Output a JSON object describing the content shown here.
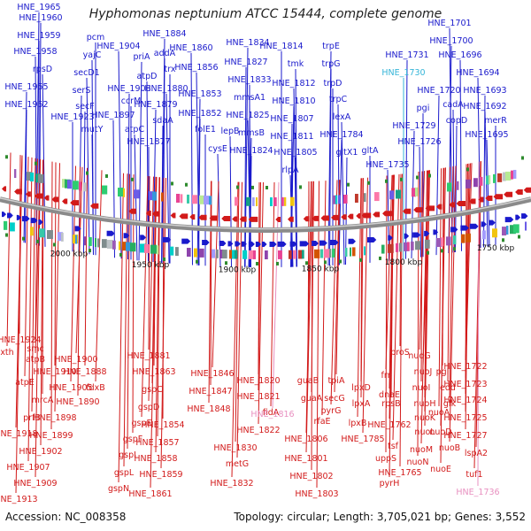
{
  "title": "Hyphomonas neptunium ATCC 15444, complete genome",
  "footer": {
    "accession": "Accession: NC_008358",
    "summary": "Topology: circular; Length: 3,705,021 bp; Genes: 3,552"
  },
  "colors": {
    "forward": "#1a1acc",
    "reverse": "#d21a1a",
    "highlight_forward": "#35b5d8",
    "highlight_reverse": "#e890c0",
    "backbone": "#888888"
  },
  "kbp_ticks": [
    "2000 kbp",
    "1950 kbp",
    "1900 kbp",
    "1850 kbp",
    "1800 kbp",
    "1750 kbp"
  ],
  "top_labels": [
    "HNE_1965",
    "HNE_1960",
    "HNE_1959",
    "HNE_1958",
    "rpsD",
    "HNE_1955",
    "HNE_1952",
    "pcm",
    "yajC",
    "secD1",
    "serS",
    "secF",
    "HNE_1923",
    "mutY",
    "HNE_1904",
    "priA",
    "HNE_1908",
    "ccrM",
    "HNE_1897",
    "atpC",
    "HNE_1884",
    "addA",
    "trx",
    "atpD",
    "HNE_1880",
    "HNE_1879",
    "sdaA",
    "HNE_1877",
    "HNE_1860",
    "HNE_1856",
    "HNE_1853",
    "HNE_1852",
    "folE1",
    "lepB",
    "cysE",
    "HNE_1834",
    "HNE_1827",
    "HNE_1833",
    "mmsA1",
    "HNE_1825",
    "mmsB",
    "HNE_1824",
    "HNE_1814",
    "tmk",
    "HNE_1812",
    "HNE_1810",
    "HNE_1807",
    "HNE_1811",
    "HNE_1805",
    "rlpA",
    "trpE",
    "trpG",
    "trpD",
    "trpC",
    "lexA",
    "HNE_1784",
    "gltX1",
    "gltA",
    "HNE_1735",
    "HNE_1701",
    "HNE_1700",
    "HNE_1731",
    "HNE_1730",
    "HNE_1696",
    "HNE_1694",
    "HNE_1720",
    "HNE_1693",
    "pgi",
    "cadA",
    "HNE_1692",
    "HNE_1729",
    "copD",
    "merR",
    "HNE_1726",
    "HNE_1695"
  ],
  "bottom_labels": [
    "HNE_1924",
    "smc",
    "xth",
    "atpB",
    "HNE_1900",
    "HNE_1910",
    "HNE_1888",
    "atpE",
    "HNE_1905",
    "fdxB",
    "mrcA",
    "HNE_1890",
    "prfB",
    "HNE_1898",
    "HNE_1918",
    "HNE_1899",
    "HNE_1902",
    "HNE_1907",
    "HNE_1909",
    "HNE_1913",
    "HNE_1881",
    "HNE_1863",
    "gspC",
    "gspD",
    "gspE",
    "gspF",
    "gspI",
    "gspL",
    "gspN",
    "HNE_1861",
    "HNE_1854",
    "HNE_1857",
    "HNE_1858",
    "HNE_1859",
    "HNE_1846",
    "HNE_1847",
    "HNE_1848",
    "HNE_1830",
    "metG",
    "HNE_1832",
    "HNE_1820",
    "HNE_1821",
    "fidA",
    "HNE_1822",
    "HNE_1816",
    "guaB",
    "guaA",
    "rfaE",
    "HNE_1806",
    "HNE_1801",
    "HNE_1802",
    "HNE_1803",
    "tpiA",
    "secG",
    "pyrG",
    "lpxD",
    "lpxA",
    "lpxB",
    "HNE_1785",
    "frr",
    "proS",
    "rpsB",
    "dnaE",
    "HNE_1762",
    "tsf",
    "uppS",
    "HNE_1765",
    "pyrH",
    "nuoG",
    "nuoJ",
    "nuoI",
    "nuoH",
    "nuoK",
    "nuoL",
    "nuoM",
    "nuoN",
    "nuoA",
    "nuoE",
    "nuoD",
    "nuoB",
    "pgl",
    "edd",
    "glk",
    "HNE_1722",
    "HNE_1723",
    "HNE_1724",
    "HNE_1725",
    "HNE_1727",
    "lspA2",
    "tuf1",
    "HNE_1736"
  ]
}
